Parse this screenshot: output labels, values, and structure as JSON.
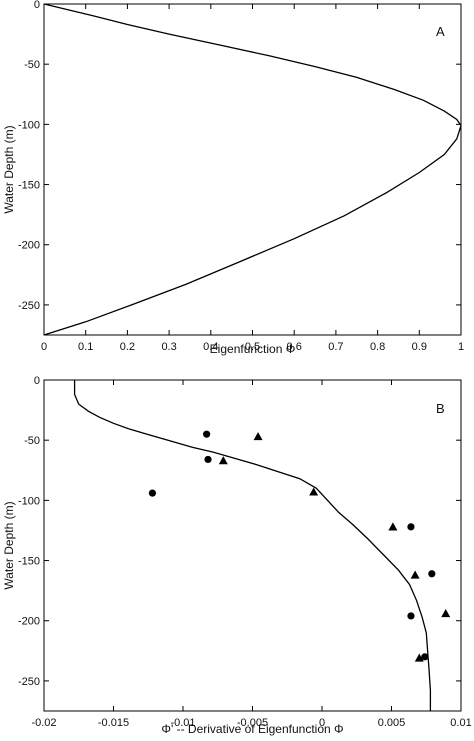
{
  "chart_data": [
    {
      "type": "line",
      "panel_label": "A",
      "xlabel": "Eigenfunction Φ",
      "ylabel": "Water Depth (m)",
      "xlim": [
        0,
        1
      ],
      "ylim": [
        -275,
        0
      ],
      "xticks": [
        0,
        0.1,
        0.2,
        0.3,
        0.4,
        0.5,
        0.6,
        0.7,
        0.8,
        0.9,
        1
      ],
      "xtick_labels": [
        "0",
        "0.1",
        "0.2",
        "0.3",
        "0.4",
        "0.5",
        "0.6",
        "0.7",
        "0.8",
        "0.9",
        "1"
      ],
      "yticks": [
        0,
        -50,
        -100,
        -150,
        -200,
        -250
      ],
      "ytick_labels": [
        "0",
        "-50",
        "-100",
        "-150",
        "-200",
        "-250"
      ],
      "grid": false,
      "series": [
        {
          "x": [
            0,
            0.06,
            0.12,
            0.2,
            0.3,
            0.42,
            0.54,
            0.65,
            0.75,
            0.84,
            0.91,
            0.96,
            0.99,
            1,
            0.99,
            0.96,
            0.9,
            0.82,
            0.72,
            0.6,
            0.47,
            0.34,
            0.21,
            0.1,
            0
          ],
          "y": [
            0,
            -5,
            -10,
            -17,
            -25,
            -34,
            -43,
            -52,
            -61,
            -71,
            -80,
            -89,
            -96,
            -101,
            -112,
            -125,
            -140,
            -157,
            -176,
            -195,
            -214,
            -233,
            -250,
            -264,
            -275
          ]
        }
      ]
    },
    {
      "type": "scatter",
      "panel_label": "B",
      "xlabel": "Φ' -- Derivative of Eigenfunction Φ",
      "ylabel": "Water Depth (m)",
      "xlim": [
        -0.02,
        0.01
      ],
      "ylim": [
        -275,
        0
      ],
      "xticks": [
        -0.02,
        -0.015,
        -0.01,
        -0.005,
        0,
        0.005,
        0.01
      ],
      "xtick_labels": [
        "-0.02",
        "-0.015",
        "-0.01",
        "-0.005",
        "0",
        "0.005",
        "0.01"
      ],
      "yticks": [
        0,
        -50,
        -100,
        -150,
        -200,
        -250
      ],
      "ytick_labels": [
        "0",
        "-50",
        "-100",
        "-150",
        "-200",
        "-250"
      ],
      "grid": false,
      "line": {
        "x": [
          -0.0178,
          -0.0178,
          -0.0175,
          -0.0168,
          -0.016,
          -0.015,
          -0.0138,
          -0.0123,
          -0.0108,
          -0.0093,
          -0.0078,
          -0.0063,
          -0.0048,
          -0.0032,
          -0.0016,
          -0.0004,
          0.0004,
          0.0012,
          0.0022,
          0.0033,
          0.0044,
          0.0055,
          0.0063,
          0.0068,
          0.0072,
          0.0075,
          0.0076,
          0.0077,
          0.0078,
          0.0078
        ],
        "y": [
          0,
          -12,
          -20,
          -26,
          -31,
          -36,
          -41,
          -46,
          -51,
          -56,
          -60,
          -65,
          -70,
          -76,
          -82,
          -90,
          -100,
          -110,
          -120,
          -132,
          -145,
          -158,
          -170,
          -183,
          -197,
          -210,
          -225,
          -240,
          -258,
          -275
        ]
      },
      "circles": {
        "x": [
          -0.0083,
          -0.0082,
          -0.0122,
          0.0064,
          0.0079,
          0.0064,
          0.0074
        ],
        "y": [
          -45,
          -66,
          -94,
          -122,
          -161,
          -196,
          -230
        ]
      },
      "triangles": {
        "x": [
          -0.0046,
          -0.0071,
          -0.0006,
          0.0051,
          0.0067,
          0.0089,
          0.007
        ],
        "y": [
          -47,
          -67,
          -93,
          -122,
          -162,
          -194,
          -231
        ]
      }
    }
  ]
}
